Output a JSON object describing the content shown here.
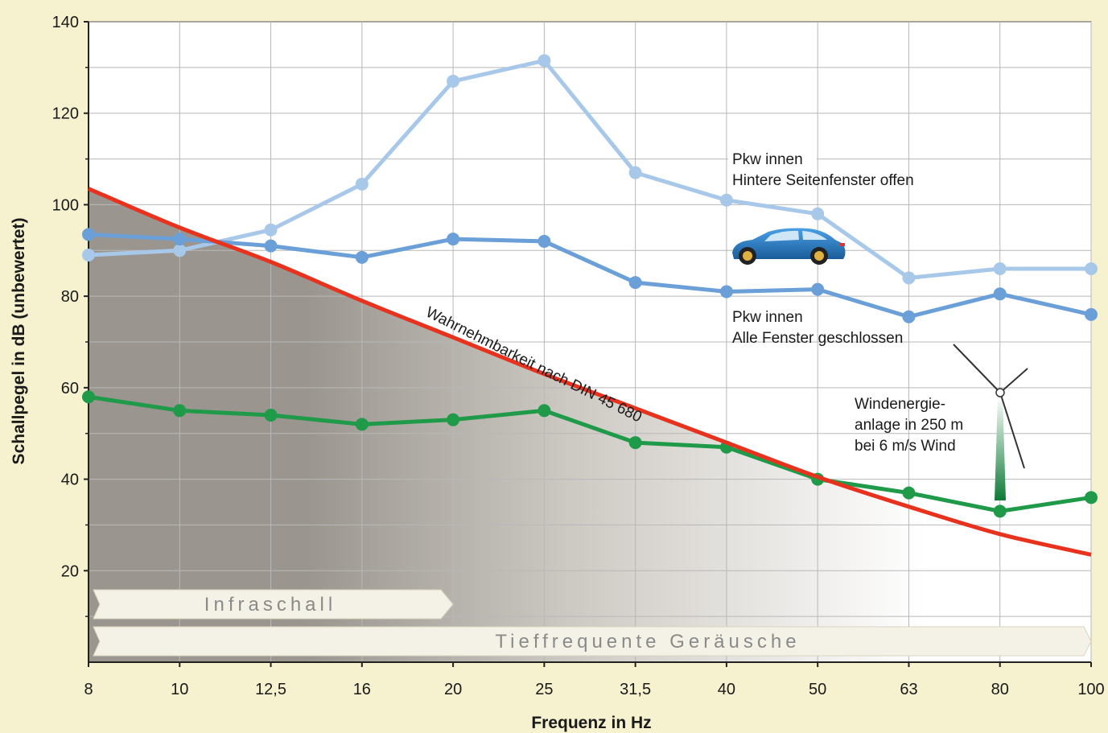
{
  "chart_data": {
    "type": "line",
    "categories": [
      "8",
      "10",
      "12,5",
      "16",
      "20",
      "25",
      "31,5",
      "40",
      "50",
      "63",
      "80",
      "100"
    ],
    "xlabel": "Frequenz in Hz",
    "ylabel": "Schallpegel in dB (unbewertet)",
    "ylim": [
      0,
      140
    ],
    "yticks": [
      20,
      40,
      60,
      80,
      100,
      120,
      140
    ],
    "grid": true,
    "series": [
      {
        "name": "Pkw innen Hintere Seitenfenster offen",
        "color": "#a8c8ea",
        "values": [
          89,
          90,
          94.5,
          104.5,
          127,
          131.5,
          107,
          101,
          98,
          84,
          86,
          86
        ]
      },
      {
        "name": "Pkw innen Alle Fenster geschlossen",
        "color": "#6a9fd8",
        "values": [
          93.5,
          92.5,
          91,
          88.5,
          92.5,
          92,
          83,
          81,
          81.5,
          75.5,
          80.5,
          76
        ]
      },
      {
        "name": "Windenergieanlage in 250 m bei 6 m/s Wind",
        "color": "#1e9a48",
        "values": [
          58,
          55,
          54,
          52,
          53,
          55,
          48,
          47,
          40,
          37,
          33,
          36
        ]
      }
    ],
    "threshold": {
      "label": "Wahrnehmbarkeit nach DIN 45 680",
      "color": "#e8321e",
      "values": [
        103.5,
        95,
        87.5,
        79,
        71,
        63,
        55.5,
        48,
        40.5,
        34,
        28,
        23.5
      ]
    },
    "annotations": {
      "car_open": [
        "Pkw innen",
        "Hintere Seitenfenster offen"
      ],
      "car_closed": [
        "Pkw innen",
        "Alle Fenster geschlossen"
      ],
      "wind": [
        "Windenergie-",
        "anlage in 250 m",
        "bei 6 m/s Wind"
      ]
    },
    "bands": {
      "infraschall": "Infraschall",
      "tieffrequent": "Tieffrequente Geräusche"
    },
    "icons": [
      "car-icon",
      "wind-turbine-icon"
    ]
  }
}
